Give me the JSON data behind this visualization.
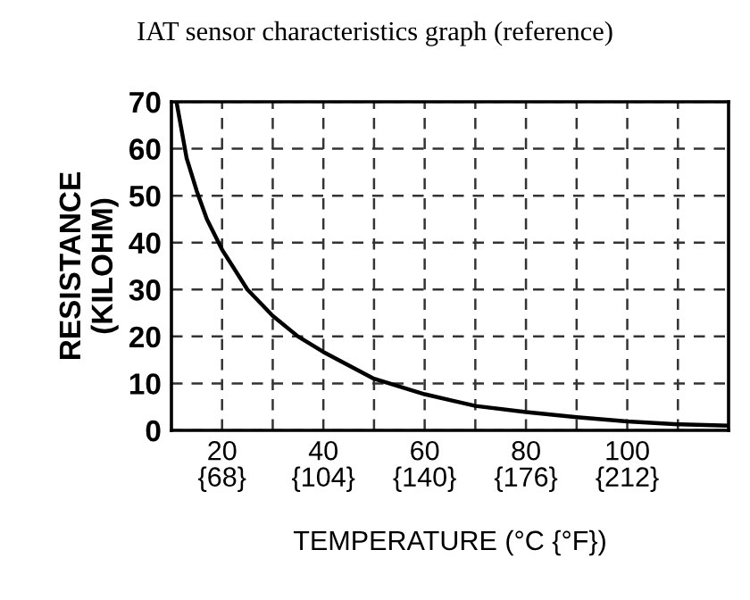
{
  "chart_data": {
    "type": "line",
    "title": "IAT sensor characteristics graph (reference)",
    "xlabel": "TEMPERATURE (°C {°F})",
    "ylabel": "RESISTANCE\n(KILOHM)",
    "x": [
      11,
      13,
      15,
      17,
      20,
      25,
      30,
      35,
      40,
      50,
      60,
      70,
      80,
      90,
      100,
      110,
      120
    ],
    "series": [
      {
        "color": "#000000",
        "values": [
          70,
          58,
          51,
          45,
          38.5,
          30,
          24.4,
          20,
          16.7,
          11,
          7.7,
          5.2,
          3.9,
          2.8,
          1.9,
          1.3,
          1.0
        ]
      }
    ],
    "xlim": [
      10,
      120
    ],
    "ylim": [
      0,
      70
    ],
    "xticks": [
      20,
      {
        "value": 30,
        "label": null
      },
      40,
      {
        "value": 50,
        "label": null
      },
      60,
      {
        "value": 70,
        "label": null
      },
      80,
      {
        "value": 90,
        "label": null
      },
      100,
      {
        "value": 110,
        "label": null
      }
    ],
    "x2lim": [
      50,
      248
    ],
    "x2ticks": [
      {
        "value": 68,
        "label": "{68}"
      },
      {
        "value": 104,
        "label": "{104}"
      },
      {
        "value": 140,
        "label": "{140}"
      },
      {
        "value": 176,
        "label": "{176}"
      },
      {
        "value": 212,
        "label": "{212}"
      }
    ],
    "yticks": [
      0,
      10,
      20,
      30,
      40,
      50,
      60,
      70
    ],
    "grid": true,
    "line_style": "solid",
    "marker": "none"
  }
}
